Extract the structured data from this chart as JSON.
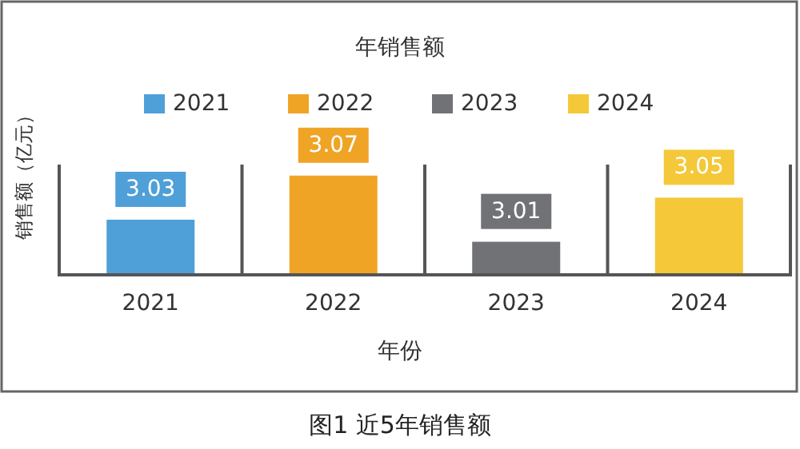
{
  "chart_data": {
    "type": "bar",
    "title": "年销售额",
    "ylabel": "销售额（亿元）",
    "xlabel": "年份",
    "categories": [
      "2021",
      "2022",
      "2023",
      "2024"
    ],
    "series": [
      {
        "name": "2021",
        "color": "#4f9fd8",
        "values": [
          3.03,
          null,
          null,
          null
        ]
      },
      {
        "name": "2022",
        "color": "#f0a426",
        "values": [
          null,
          3.07,
          null,
          null
        ]
      },
      {
        "name": "2023",
        "color": "#707275",
        "values": [
          null,
          null,
          3.01,
          null
        ]
      },
      {
        "name": "2024",
        "color": "#f4c838",
        "values": [
          null,
          null,
          null,
          3.05
        ]
      }
    ],
    "ylim": [
      2.98,
      3.08
    ],
    "data_labels": true,
    "legend": "top",
    "annotations": [
      "图1 近5年销售额"
    ]
  }
}
